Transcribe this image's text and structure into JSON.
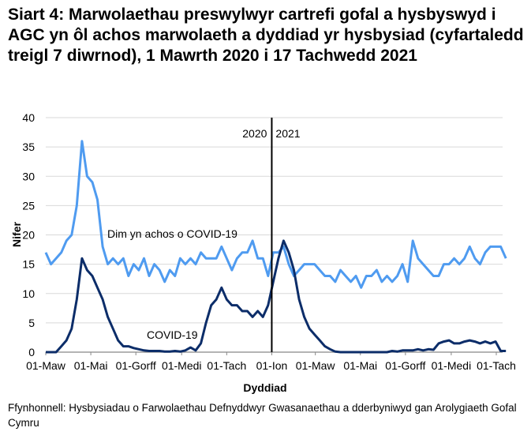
{
  "title": "Siart 4: Marwolaethau preswylwyr cartrefi gofal a hysbyswyd i AGC yn ôl achos marwolaeth a dyddiad yr hysbysiad (cyfartaledd treigl 7 diwrnod), 1 Mawrth 2020 i 17 Tachwedd 2021",
  "source": "Ffynhonnell: Hysbysiadau o Farwolaethau Defnyddwyr Gwasanaethau a dderbyniwyd gan Arolygiaeth Gofal Cymru",
  "chart_data": {
    "type": "line",
    "xlabel": "Dyddiad",
    "ylabel": "Nifer",
    "ylim": [
      0,
      40
    ],
    "yticks": [
      "0",
      "5",
      "10",
      "15",
      "20",
      "25",
      "30",
      "35",
      "40"
    ],
    "xticks": [
      "01-Maw",
      "01-Mai",
      "01-Gorff",
      "01-Medi",
      "01-Tach",
      "01-Ion",
      "01-Maw",
      "01-Mai",
      "01-Gorff",
      "01-Medi",
      "01-Tach"
    ],
    "xtick_days": [
      0,
      61,
      122,
      184,
      245,
      306,
      365,
      426,
      487,
      549,
      610
    ],
    "x_unit": "days since 1 March 2020 (weekly samples)",
    "grid": true,
    "divider": {
      "day": 306,
      "left_label": "2020",
      "right_label": "2021"
    },
    "series": [
      {
        "name": "Dim yn achos o COVID-19",
        "color": "#4f9bf0",
        "values": [
          17,
          15,
          16,
          17,
          19,
          20,
          25,
          36,
          30,
          29,
          26,
          18,
          15,
          16,
          15,
          16,
          13,
          15,
          14,
          16,
          13,
          15,
          14,
          12,
          14,
          13,
          16,
          15,
          16,
          15,
          17,
          16,
          16,
          16,
          18,
          16,
          14,
          16,
          17,
          17,
          19,
          16,
          16,
          13,
          17,
          17,
          18,
          15,
          13,
          14,
          15,
          15,
          15,
          14,
          13,
          13,
          12,
          14,
          13,
          12,
          13,
          11,
          13,
          13,
          14,
          12,
          13,
          12,
          13,
          15,
          12,
          19,
          16,
          15,
          14,
          13,
          13,
          15,
          15,
          16,
          15,
          16,
          18,
          16,
          15,
          17,
          18,
          18,
          18,
          16
        ]
      },
      {
        "name": "COVID-19",
        "color": "#0c2d69",
        "values": [
          0,
          0,
          0,
          1,
          2,
          4,
          9,
          16,
          14,
          13,
          11,
          9,
          6,
          4,
          2,
          1,
          1,
          0.7,
          0.5,
          0.3,
          0.2,
          0.2,
          0.2,
          0.1,
          0.1,
          0.2,
          0.1,
          0.3,
          0.8,
          0.3,
          1.5,
          5,
          8,
          9,
          11,
          9,
          8,
          8,
          7,
          7,
          6,
          7,
          6,
          8,
          12,
          16,
          19,
          17,
          14,
          9,
          6,
          4,
          3,
          2,
          1,
          0.5,
          0.1,
          0,
          0,
          0,
          0,
          0,
          0,
          0,
          0,
          0,
          0,
          0.2,
          0.1,
          0.3,
          0.3,
          0.3,
          0.5,
          0.3,
          0.5,
          0.4,
          1.5,
          1.8,
          2,
          1.5,
          1.5,
          1.8,
          2,
          1.8,
          1.5,
          1.8,
          1.5,
          1.8,
          0.2,
          0.2
        ]
      }
    ]
  }
}
